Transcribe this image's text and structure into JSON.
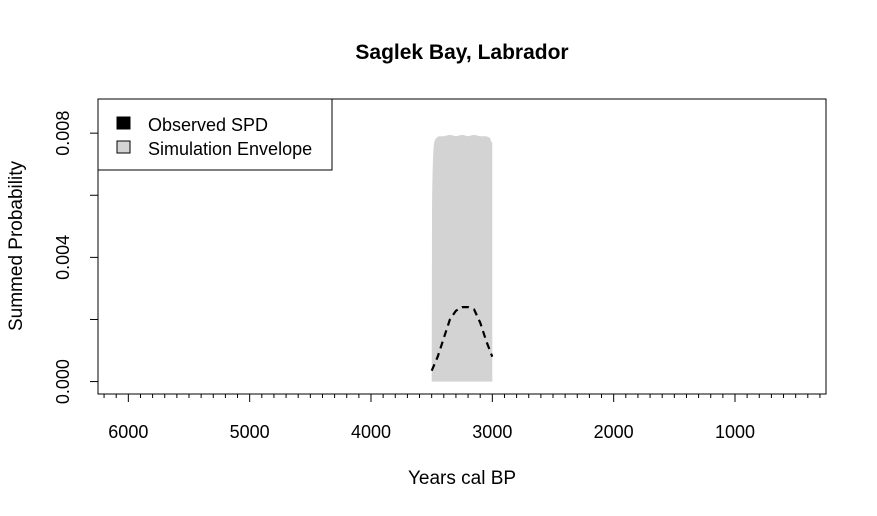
{
  "chart_data": {
    "type": "area",
    "title": "Saglek Bay, Labrador",
    "xlabel": "Years cal BP",
    "ylabel": "Summed Probability",
    "xlim": [
      6250,
      250
    ],
    "ylim": [
      -0.0004,
      0.0091
    ],
    "x_reversed": true,
    "x_ticks": [
      6000,
      5000,
      4000,
      3000,
      2000,
      1000
    ],
    "x_minor_step": 100,
    "x_tick_labels": [
      "6000",
      "5000",
      "4000",
      "3000",
      "2000",
      "1000"
    ],
    "y_ticks": [
      0.0,
      0.002,
      0.004,
      0.006,
      0.008
    ],
    "y_tick_labels": [
      "0.000",
      "",
      "0.004",
      "",
      "0.008"
    ],
    "grid": false,
    "legend": {
      "position": "top-left",
      "entries": [
        {
          "label": "Observed SPD",
          "color": "#000000"
        },
        {
          "label": "Simulation Envelope",
          "color": "#d3d3d3"
        }
      ]
    },
    "series": [
      {
        "name": "Simulation Envelope",
        "kind": "band",
        "color": "#d3d3d3",
        "x": [
          3500,
          3497,
          3494,
          3490,
          3485,
          3480,
          3470,
          3460,
          3440,
          3420,
          3400,
          3350,
          3300,
          3250,
          3200,
          3150,
          3100,
          3050,
          3020,
          3010,
          3005,
          3000
        ],
        "lower": [
          0,
          0,
          0,
          0,
          0,
          0,
          0,
          0,
          0,
          0,
          0,
          0,
          0,
          0,
          0,
          0,
          0,
          0,
          0,
          0,
          0,
          0
        ],
        "upper": [
          0.0001,
          0.0056,
          0.0065,
          0.0071,
          0.0075,
          0.0077,
          0.0078,
          0.00785,
          0.0079,
          0.0079,
          0.0079,
          0.00795,
          0.0079,
          0.00795,
          0.0079,
          0.00795,
          0.0079,
          0.0079,
          0.00785,
          0.00775,
          0.0077,
          0.0077
        ]
      },
      {
        "name": "Observed SPD",
        "kind": "line",
        "color": "#000000",
        "dash": true,
        "x": [
          3500,
          3450,
          3400,
          3350,
          3300,
          3250,
          3200,
          3150,
          3100,
          3050,
          3000
        ],
        "y": [
          0.00035,
          0.0008,
          0.0014,
          0.002,
          0.00228,
          0.0024,
          0.0024,
          0.00232,
          0.0019,
          0.0013,
          0.0008
        ]
      }
    ]
  }
}
